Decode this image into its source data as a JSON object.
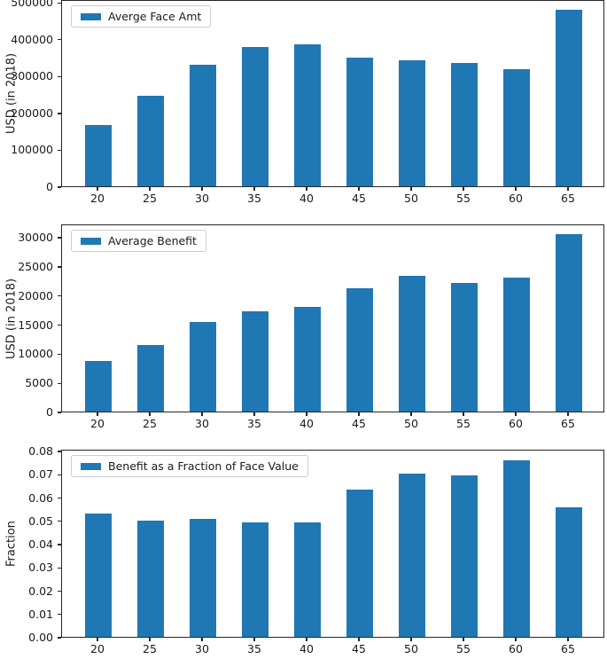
{
  "figure": {
    "background": "#ffffff",
    "bar_color": "#1f77b4",
    "axis_color": "#262626",
    "text_color": "#1a1a1a",
    "legend_border_color": "#cccccc"
  },
  "chart_data": [
    {
      "type": "bar",
      "legend": "Averge Face Amt",
      "ylabel": "USD (in 2018)",
      "categories": [
        "20",
        "25",
        "30",
        "35",
        "40",
        "45",
        "50",
        "55",
        "60",
        "65"
      ],
      "values": [
        167000,
        247000,
        334000,
        382000,
        388000,
        352000,
        345000,
        338000,
        322000,
        484000
      ],
      "ylim": [
        0,
        508000
      ],
      "ytick_values": [
        0,
        100000,
        200000,
        300000,
        400000,
        500000
      ],
      "ytick_labels": [
        "0",
        "100000",
        "200000",
        "300000",
        "400000",
        "500000"
      ],
      "legend_position": "upper left",
      "grid": false
    },
    {
      "type": "bar",
      "legend": "Average Benefit",
      "ylabel": "USD (in 2018)",
      "categories": [
        "20",
        "25",
        "30",
        "35",
        "40",
        "45",
        "50",
        "55",
        "60",
        "65"
      ],
      "values": [
        8800,
        11500,
        15600,
        17400,
        18200,
        21400,
        23600,
        22300,
        23200,
        30700
      ],
      "ylim": [
        0,
        32300
      ],
      "ytick_values": [
        0,
        5000,
        10000,
        15000,
        20000,
        25000,
        30000
      ],
      "ytick_labels": [
        "0",
        "5000",
        "10000",
        "15000",
        "20000",
        "25000",
        "30000"
      ],
      "legend_position": "upper left",
      "grid": false
    },
    {
      "type": "bar",
      "legend": "Benefit as a Fraction of Face Value",
      "ylabel": "Fraction",
      "categories": [
        "20",
        "25",
        "30",
        "35",
        "40",
        "45",
        "50",
        "55",
        "60",
        "65"
      ],
      "values": [
        0.0535,
        0.0504,
        0.0511,
        0.0498,
        0.0498,
        0.0637,
        0.0708,
        0.0702,
        0.0764,
        0.0563
      ],
      "ylim": [
        0,
        0.0808
      ],
      "ytick_values": [
        0,
        0.01,
        0.02,
        0.03,
        0.04,
        0.05,
        0.06,
        0.07,
        0.08
      ],
      "ytick_labels": [
        "0.00",
        "0.01",
        "0.02",
        "0.03",
        "0.04",
        "0.05",
        "0.06",
        "0.07",
        "0.08"
      ],
      "legend_position": "upper left",
      "grid": false
    }
  ]
}
